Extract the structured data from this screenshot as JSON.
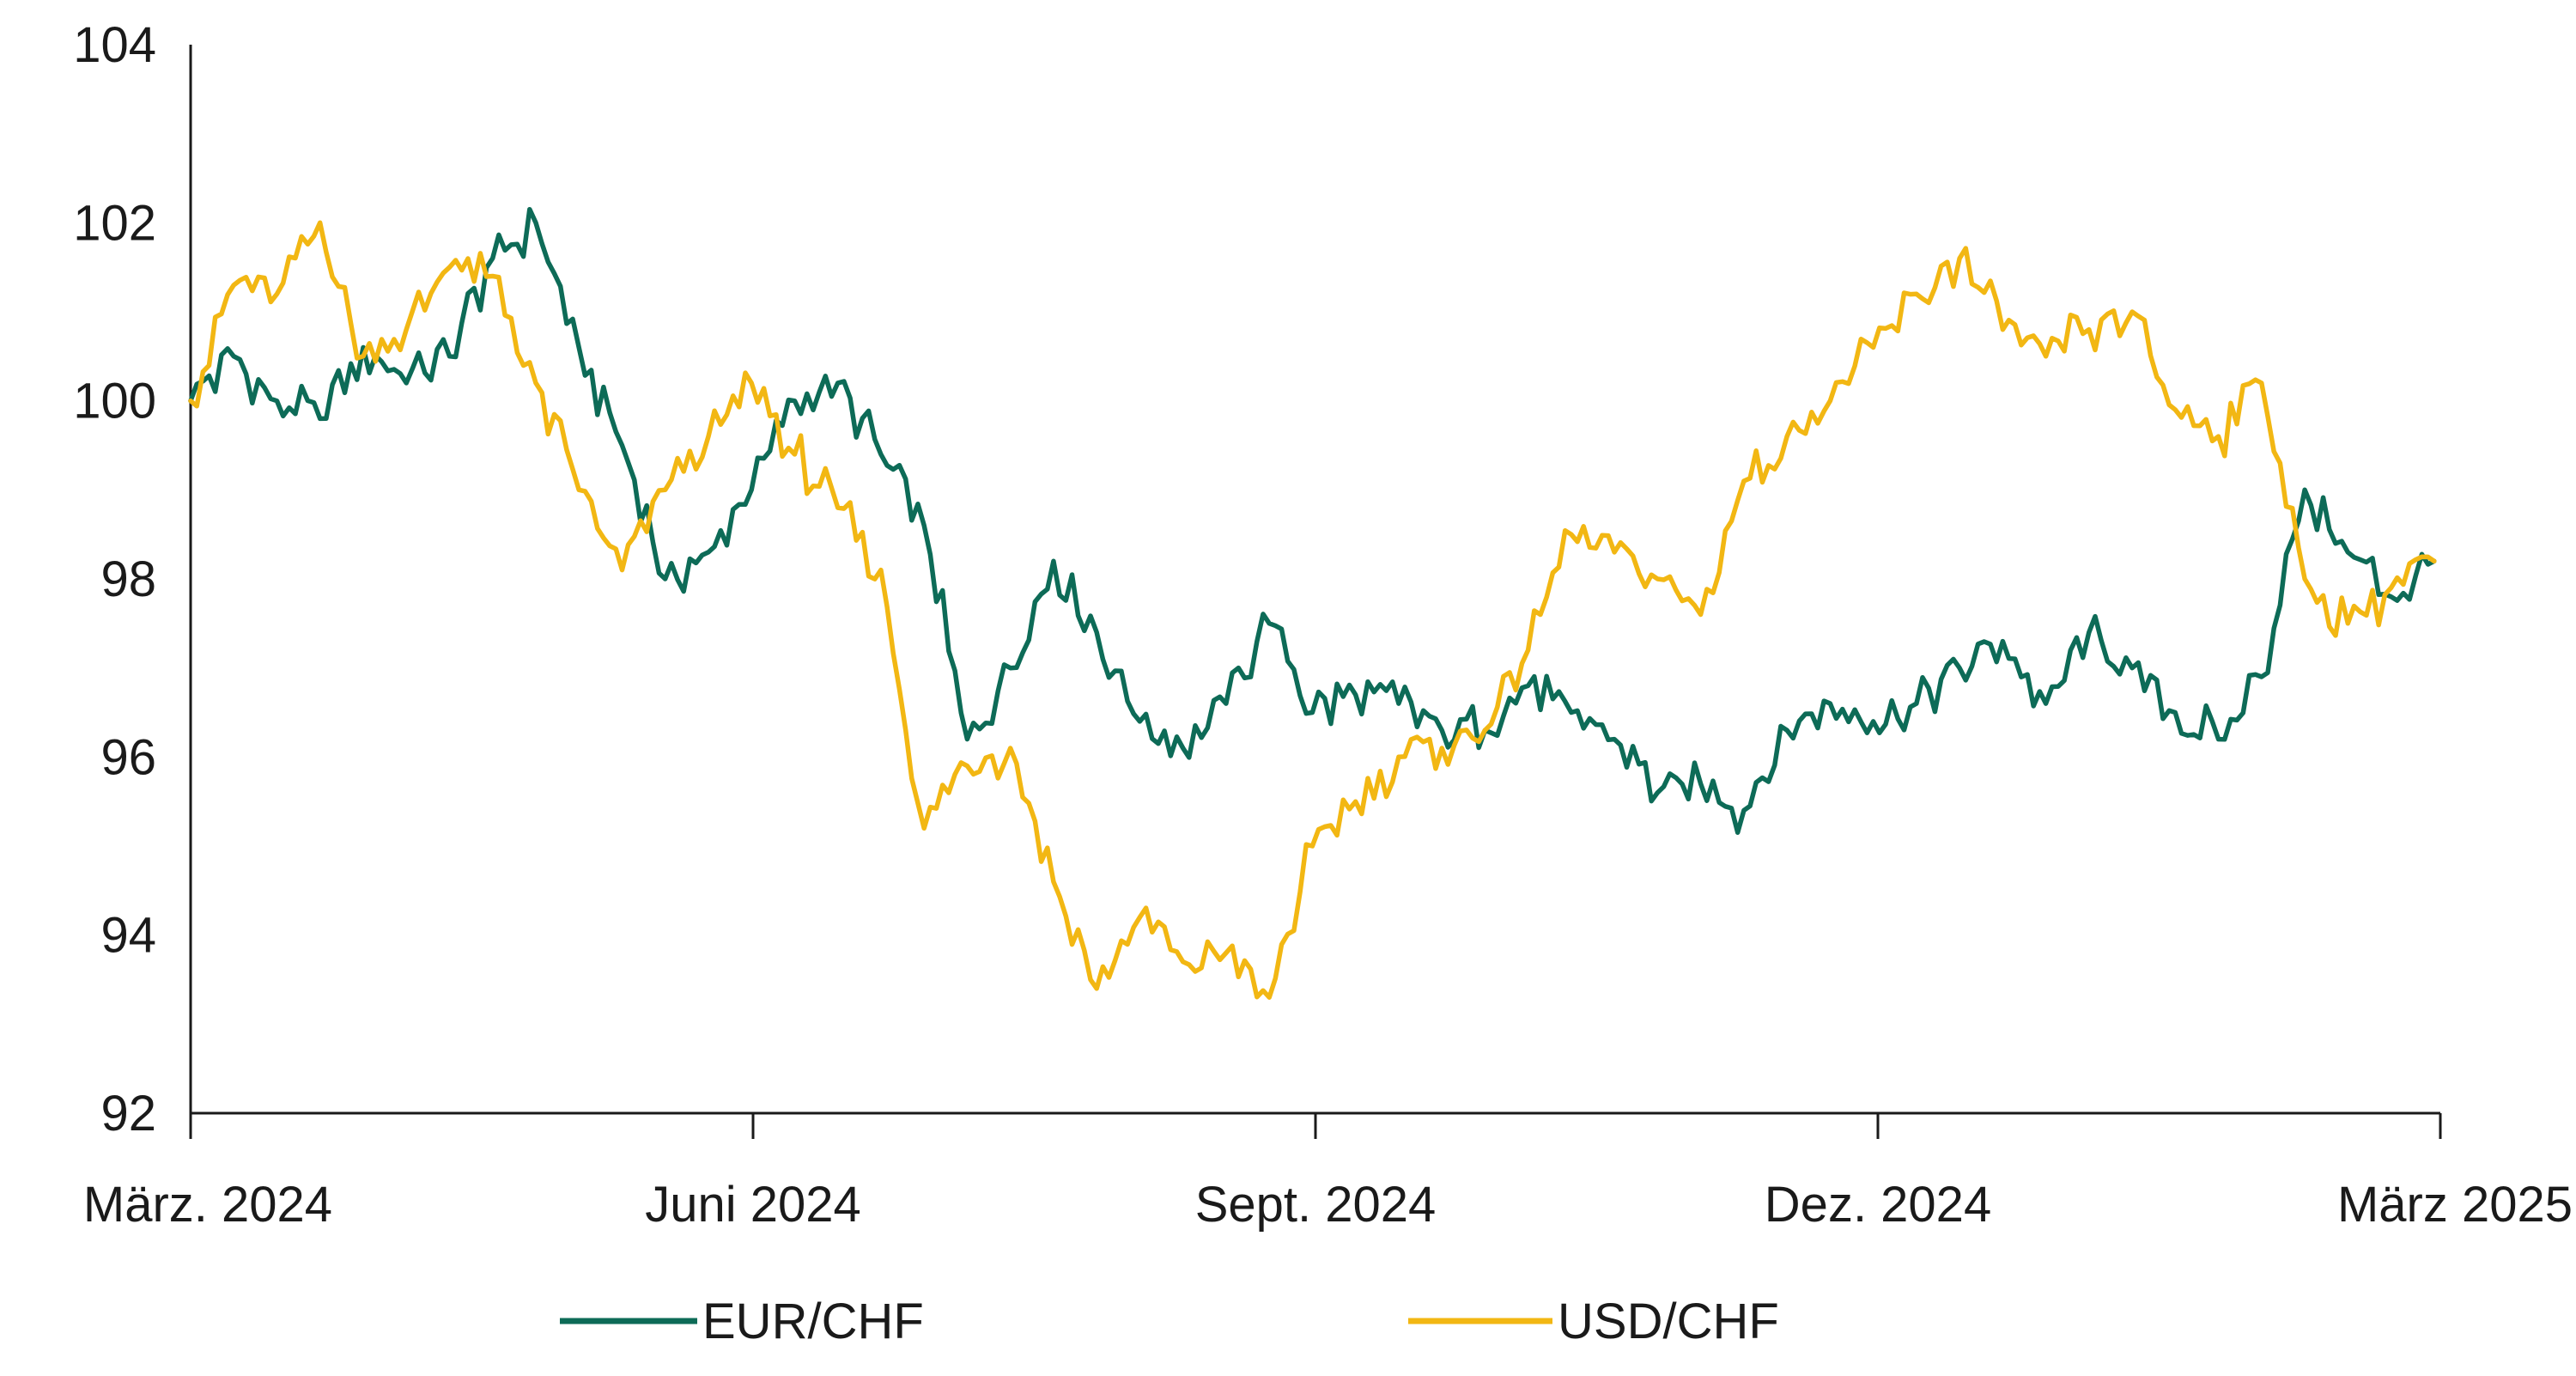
{
  "chart_data": {
    "type": "line",
    "title": "",
    "xlabel": "",
    "ylabel": "",
    "ylim": [
      92,
      104
    ],
    "yticks": [
      "92",
      "94",
      "96",
      "98",
      "100",
      "102",
      "104"
    ],
    "xlim": [
      "2024-03-01",
      "2025-03-01"
    ],
    "xticks": [
      "März. 2024",
      "Juni 2024",
      "Sept. 2024",
      "Dez. 2024",
      "März 2025"
    ],
    "grid": false,
    "legend": "bottom",
    "series": [
      {
        "name": "EUR/CHF",
        "color": "#0d6b57",
        "x": [
          "2024-03-01",
          "2024-03-08",
          "2024-03-15",
          "2024-03-22",
          "2024-03-29",
          "2024-04-05",
          "2024-04-12",
          "2024-04-19",
          "2024-04-26",
          "2024-05-03",
          "2024-05-10",
          "2024-05-17",
          "2024-05-24",
          "2024-05-31",
          "2024-06-07",
          "2024-06-14",
          "2024-06-21",
          "2024-06-28",
          "2024-07-05",
          "2024-07-12",
          "2024-07-19",
          "2024-07-26",
          "2024-08-02",
          "2024-08-09",
          "2024-08-16",
          "2024-08-23",
          "2024-08-30",
          "2024-09-06",
          "2024-09-13",
          "2024-09-20",
          "2024-09-27",
          "2024-10-04",
          "2024-10-11",
          "2024-10-18",
          "2024-10-25",
          "2024-11-01",
          "2024-11-08",
          "2024-11-15",
          "2024-11-22",
          "2024-11-29",
          "2024-12-06",
          "2024-12-13",
          "2024-12-20",
          "2024-12-27",
          "2025-01-03",
          "2025-01-10",
          "2025-01-17",
          "2025-01-24",
          "2025-01-31",
          "2025-02-07",
          "2025-02-14",
          "2025-02-21",
          "2025-02-28"
        ],
        "values": [
          100.0,
          100.5,
          100.0,
          99.8,
          100.6,
          100.2,
          100.5,
          101.6,
          102.0,
          100.6,
          99.5,
          98.0,
          98.3,
          99.0,
          100.0,
          100.2,
          99.4,
          98.6,
          96.2,
          97.0,
          98.2,
          97.4,
          96.4,
          96.1,
          96.6,
          97.5,
          96.5,
          96.7,
          96.6,
          96.3,
          96.3,
          96.8,
          96.5,
          96.2,
          95.6,
          95.7,
          95.4,
          96.3,
          96.6,
          96.4,
          96.6,
          97.0,
          97.3,
          96.6,
          97.4,
          97.0,
          96.5,
          96.2,
          96.9,
          99.0,
          98.3,
          97.8,
          98.2
        ]
      },
      {
        "name": "USD/CHF",
        "color": "#f2b713",
        "x": [
          "2024-03-01",
          "2024-03-08",
          "2024-03-15",
          "2024-03-22",
          "2024-03-29",
          "2024-04-05",
          "2024-04-12",
          "2024-04-19",
          "2024-04-26",
          "2024-05-03",
          "2024-05-10",
          "2024-05-17",
          "2024-05-24",
          "2024-05-31",
          "2024-06-07",
          "2024-06-14",
          "2024-06-21",
          "2024-06-28",
          "2024-07-05",
          "2024-07-12",
          "2024-07-19",
          "2024-07-26",
          "2024-08-02",
          "2024-08-09",
          "2024-08-16",
          "2024-08-23",
          "2024-08-30",
          "2024-09-06",
          "2024-09-13",
          "2024-09-20",
          "2024-09-27",
          "2024-10-04",
          "2024-10-11",
          "2024-10-18",
          "2024-10-25",
          "2024-11-01",
          "2024-11-08",
          "2024-11-15",
          "2024-11-22",
          "2024-11-29",
          "2024-12-06",
          "2024-12-13",
          "2024-12-20",
          "2024-12-27",
          "2025-01-03",
          "2025-01-10",
          "2025-01-17",
          "2025-01-24",
          "2025-01-31",
          "2025-02-07",
          "2025-02-14",
          "2025-02-21",
          "2025-02-28"
        ],
        "values": [
          100.0,
          101.3,
          101.2,
          102.0,
          100.5,
          100.8,
          101.5,
          101.4,
          100.2,
          99.0,
          98.1,
          99.0,
          99.6,
          100.2,
          99.4,
          98.8,
          98.1,
          95.2,
          95.9,
          96.1,
          94.6,
          93.4,
          94.2,
          93.7,
          93.8,
          93.3,
          95.0,
          95.5,
          96.0,
          96.1,
          96.3,
          97.2,
          98.5,
          98.3,
          98.0,
          97.6,
          99.1,
          99.6,
          100.0,
          100.6,
          101.2,
          101.6,
          100.8,
          100.5,
          100.8,
          101.0,
          99.9,
          99.6,
          100.2,
          98.0,
          97.5,
          97.9,
          98.2
        ]
      }
    ]
  }
}
